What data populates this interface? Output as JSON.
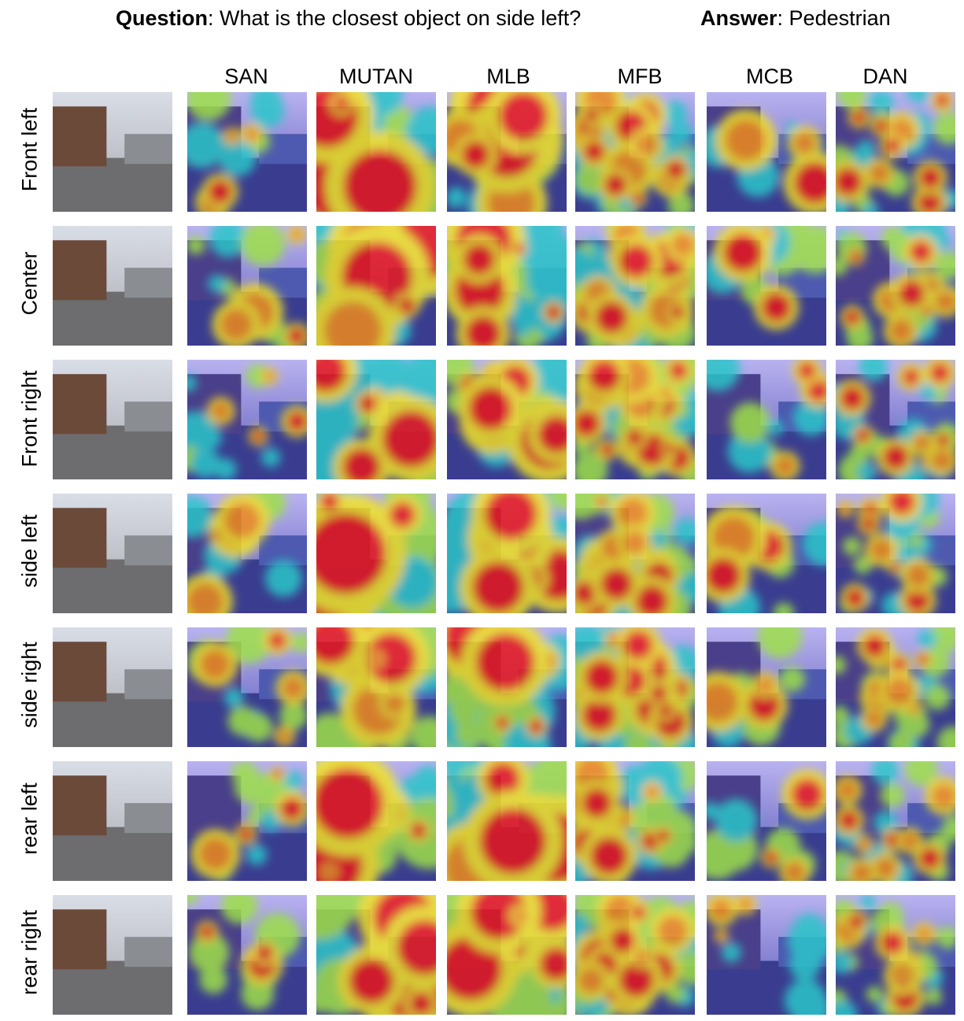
{
  "header": {
    "question_label": "Question",
    "question_text": ": What is the closest object on side left?",
    "answer_label": "Answer",
    "answer_text": ": Pedestrian"
  },
  "columns": [
    "SAN",
    "MUTAN",
    "MLB",
    "MFB",
    "MCB",
    "DAN"
  ],
  "rows": [
    "Front left",
    "Center",
    "Front right",
    "side left",
    "side right",
    "rear left",
    "rear right"
  ]
}
